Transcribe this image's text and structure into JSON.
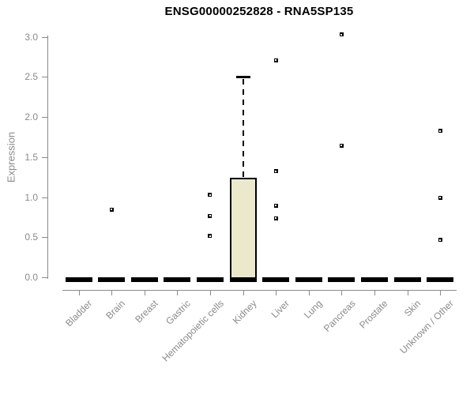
{
  "page": {
    "background": "#ffffff"
  },
  "chart_data": {
    "type": "boxplot",
    "title": "ENSG00000252828 - RNA5SP135",
    "ylabel": "Expression",
    "xlabel": "",
    "ylim": [
      0.0,
      3.0
    ],
    "yticks": [
      0.0,
      0.5,
      1.0,
      1.5,
      2.0,
      2.5,
      3.0
    ],
    "grid": "off",
    "legend": "none",
    "categories": [
      "Bladder",
      "Brain",
      "Breast",
      "Gastric",
      "Hematopoietic cells",
      "Kidney",
      "Liver",
      "Lung",
      "Pancreas",
      "Prostate",
      "Skin",
      "Unknown / Other"
    ],
    "boxes": [
      {
        "category": "Bladder",
        "q1": 0,
        "median": 0,
        "q3": 0,
        "whisker_low": 0,
        "whisker_high": 0,
        "outliers": []
      },
      {
        "category": "Brain",
        "q1": 0,
        "median": 0,
        "q3": 0,
        "whisker_low": 0,
        "whisker_high": 0,
        "outliers": [
          0.85
        ]
      },
      {
        "category": "Breast",
        "q1": 0,
        "median": 0,
        "q3": 0,
        "whisker_low": 0,
        "whisker_high": 0,
        "outliers": []
      },
      {
        "category": "Gastric",
        "q1": 0,
        "median": 0,
        "q3": 0,
        "whisker_low": 0,
        "whisker_high": 0,
        "outliers": []
      },
      {
        "category": "Hematopoietic cells",
        "q1": 0,
        "median": 0,
        "q3": 0,
        "whisker_low": 0,
        "whisker_high": 0,
        "outliers": [
          1.03,
          0.77,
          0.52
        ]
      },
      {
        "category": "Kidney",
        "q1": 0,
        "median": 0,
        "q3": 1.25,
        "whisker_low": 0,
        "whisker_high": 2.5,
        "outliers": []
      },
      {
        "category": "Liver",
        "q1": 0,
        "median": 0,
        "q3": 0,
        "whisker_low": 0,
        "whisker_high": 0,
        "outliers": [
          2.71,
          1.33,
          0.9,
          0.74
        ]
      },
      {
        "category": "Lung",
        "q1": 0,
        "median": 0,
        "q3": 0,
        "whisker_low": 0,
        "whisker_high": 0,
        "outliers": []
      },
      {
        "category": "Pancreas",
        "q1": 0,
        "median": 0,
        "q3": 0,
        "whisker_low": 0,
        "whisker_high": 0,
        "outliers": [
          3.03,
          1.65
        ]
      },
      {
        "category": "Prostate",
        "q1": 0,
        "median": 0,
        "q3": 0,
        "whisker_low": 0,
        "whisker_high": 0,
        "outliers": []
      },
      {
        "category": "Skin",
        "q1": 0,
        "median": 0,
        "q3": 0,
        "whisker_low": 0,
        "whisker_high": 0,
        "outliers": []
      },
      {
        "category": "Unknown / Other",
        "q1": 0,
        "median": 0,
        "q3": 0,
        "whisker_low": 0,
        "whisker_high": 0,
        "outliers": [
          1.83,
          1.0,
          0.47
        ]
      }
    ],
    "colors": {
      "box_fill": "#ece8cc",
      "box_border": "#000000",
      "median": "#000000",
      "outlier": "#000000",
      "axis": "#8a8a8a",
      "tick_label": "#8a8a8a",
      "title": "#000000"
    },
    "marker": "square-dot"
  }
}
